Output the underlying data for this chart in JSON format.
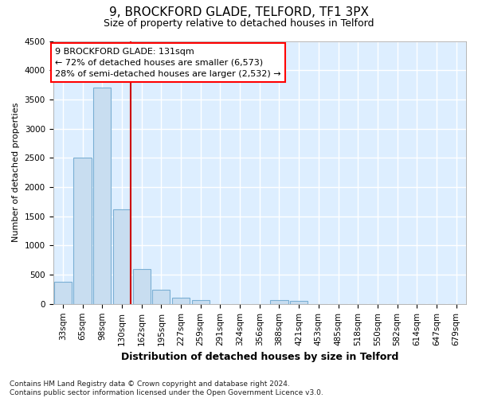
{
  "title_line1": "9, BROCKFORD GLADE, TELFORD, TF1 3PX",
  "title_line2": "Size of property relative to detached houses in Telford",
  "xlabel": "Distribution of detached houses by size in Telford",
  "ylabel": "Number of detached properties",
  "footnote": "Contains HM Land Registry data © Crown copyright and database right 2024.\nContains public sector information licensed under the Open Government Licence v3.0.",
  "categories": [
    "33sqm",
    "65sqm",
    "98sqm",
    "130sqm",
    "162sqm",
    "195sqm",
    "227sqm",
    "259sqm",
    "291sqm",
    "324sqm",
    "356sqm",
    "388sqm",
    "421sqm",
    "453sqm",
    "485sqm",
    "518sqm",
    "550sqm",
    "582sqm",
    "614sqm",
    "647sqm",
    "679sqm"
  ],
  "values": [
    375,
    2500,
    3700,
    1625,
    600,
    240,
    100,
    65,
    0,
    0,
    0,
    60,
    50,
    0,
    0,
    0,
    0,
    0,
    0,
    0,
    0
  ],
  "bar_color": "#c8ddf0",
  "bar_edge_color": "#7aafd4",
  "highlight_bar_index": 3,
  "highlight_color": "#cc0000",
  "ylim": [
    0,
    4500
  ],
  "yticks": [
    0,
    500,
    1000,
    1500,
    2000,
    2500,
    3000,
    3500,
    4000,
    4500
  ],
  "annotation_box_text": "9 BROCKFORD GLADE: 131sqm\n← 72% of detached houses are smaller (6,573)\n28% of semi-detached houses are larger (2,532) →",
  "bg_color": "#ddeeff",
  "grid_color": "#ffffff",
  "title_fontsize": 11,
  "subtitle_fontsize": 9,
  "ylabel_fontsize": 8,
  "xlabel_fontsize": 9,
  "tick_fontsize": 7.5,
  "annot_fontsize": 8,
  "footnote_fontsize": 6.5
}
